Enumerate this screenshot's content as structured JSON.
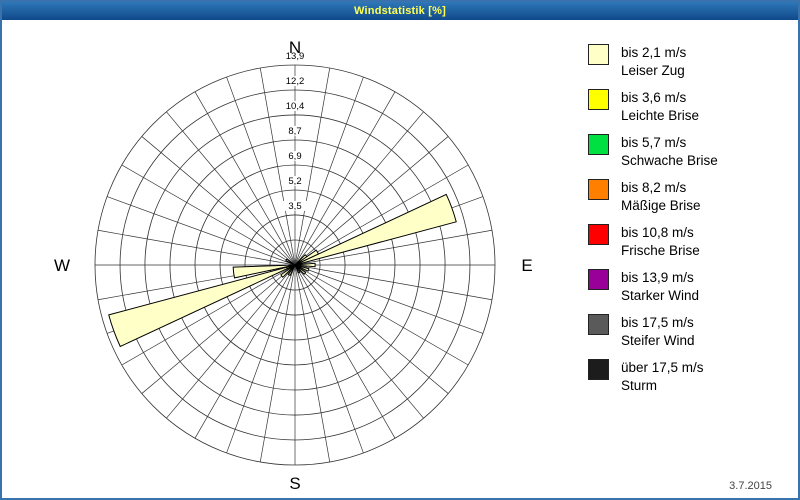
{
  "window": {
    "title": "Windstatistik [%]"
  },
  "chrome": {
    "titlebar_from": "#2e77b8",
    "titlebar_to": "#10498a",
    "title_color": "#ffff55",
    "border": "#3a72ad"
  },
  "footer": {
    "date": "3.7.2015"
  },
  "legend": {
    "items": [
      {
        "speed": "bis 2,1 m/s",
        "name": "Leiser Zug",
        "color": "#FFFFC8"
      },
      {
        "speed": "bis 3,6 m/s",
        "name": "Leichte Brise",
        "color": "#FFFF00"
      },
      {
        "speed": "bis 5,7 m/s",
        "name": "Schwache Brise",
        "color": "#00E040"
      },
      {
        "speed": "bis 8,2 m/s",
        "name": "Mäßige Brise",
        "color": "#FF8000"
      },
      {
        "speed": "bis 10,8 m/s",
        "name": "Frische Brise",
        "color": "#FF0000"
      },
      {
        "speed": "bis 13,9 m/s",
        "name": "Starker Wind",
        "color": "#990099"
      },
      {
        "speed": "bis 17,5 m/s",
        "name": "Steifer Wind",
        "color": "#5a5a5a"
      },
      {
        "speed": "über 17,5 m/s",
        "name": "Sturm",
        "color": "#1c1c1c"
      }
    ]
  },
  "chart_data": {
    "type": "bar",
    "subtype": "polar-wind-rose",
    "title": "Windstatistik [%]",
    "units": "%",
    "rmax": 13.9,
    "sector_width_deg": 10,
    "rings": [
      {
        "value": 1.74,
        "label": ""
      },
      {
        "value": 3.48,
        "label": "3,5"
      },
      {
        "value": 5.21,
        "label": "5,2"
      },
      {
        "value": 6.95,
        "label": "6,9"
      },
      {
        "value": 8.69,
        "label": "8,7"
      },
      {
        "value": 10.43,
        "label": "10,4"
      },
      {
        "value": 12.16,
        "label": "12,2"
      },
      {
        "value": 13.9,
        "label": "13,9"
      }
    ],
    "compass": {
      "north": "N",
      "east": "E",
      "south": "S",
      "west": "W"
    },
    "series": [
      {
        "name": "bis 2,1 m/s",
        "color": "#FFFFC8",
        "petals": [
          {
            "bearing": 50,
            "value": 1.0
          },
          {
            "bearing": 60,
            "value": 1.8
          },
          {
            "bearing": 70,
            "value": 11.6
          },
          {
            "bearing": 90,
            "value": 1.4
          },
          {
            "bearing": 110,
            "value": 1.0
          },
          {
            "bearing": 130,
            "value": 0.9
          },
          {
            "bearing": 150,
            "value": 0.6
          },
          {
            "bearing": 210,
            "value": 0.8
          },
          {
            "bearing": 230,
            "value": 1.2
          },
          {
            "bearing": 250,
            "value": 13.4
          },
          {
            "bearing": 263,
            "value": 4.3
          },
          {
            "bearing": 300,
            "value": 0.7
          }
        ]
      },
      {
        "name": "bis 3,6 m/s",
        "color": "#FFFF00",
        "petals": [
          {
            "bearing": 70,
            "value": 0.5
          },
          {
            "bearing": 90,
            "value": 0.4
          },
          {
            "bearing": 230,
            "value": 0.35
          },
          {
            "bearing": 250,
            "value": 0.6
          }
        ]
      },
      {
        "name": "bis 5,7 m/s",
        "color": "#00E040",
        "petals": [
          {
            "bearing": 70,
            "value": 0.25
          },
          {
            "bearing": 250,
            "value": 0.3
          }
        ]
      }
    ]
  }
}
